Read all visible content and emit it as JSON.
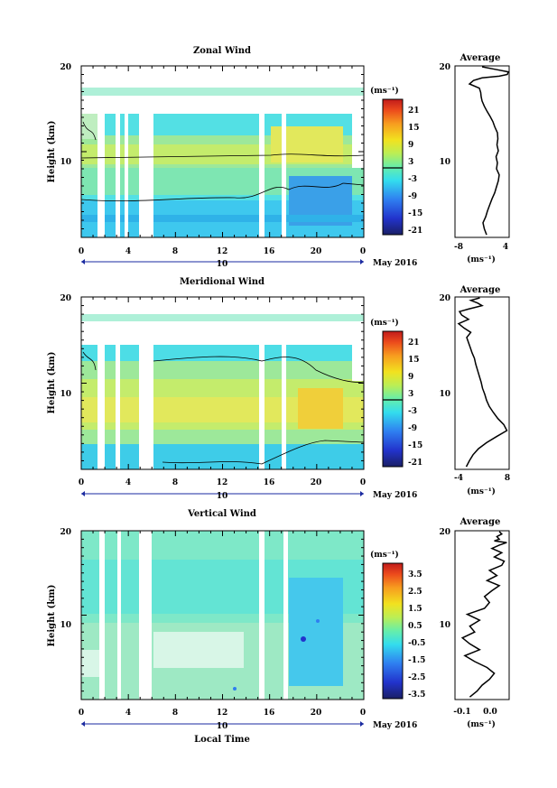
{
  "figure": {
    "xlabel": "Local Time"
  },
  "chart_data": [
    {
      "type": "heatmap",
      "title": "Zonal Wind",
      "ylabel": "Height (km)",
      "xticks": [
        "0",
        "4",
        "8",
        "12",
        "16",
        "20",
        "0"
      ],
      "yticks": [
        "10",
        "20"
      ],
      "ylim": [
        0,
        20
      ],
      "date_axis": {
        "day": "10",
        "month_label": "May 2016"
      },
      "colorbar": {
        "unit": "(ms⁻¹)",
        "ticks": [
          "21",
          "15",
          "9",
          "3",
          "-3",
          "-9",
          "-15",
          "-21"
        ],
        "range": [
          -24,
          24
        ],
        "zero_line": true
      },
      "profile": {
        "title": "Average",
        "xlabel": "(ms⁻¹)",
        "xticks": [
          "-8",
          "4"
        ],
        "xlim": [
          -8,
          4
        ],
        "yticks": [
          "10",
          "20"
        ],
        "x": [
          -1.0,
          -1.5,
          -1.8,
          -1.2,
          -0.8,
          -0.3,
          0.2,
          0.8,
          1.2,
          1.6,
          1.8,
          1.2,
          1.4,
          1.1,
          1.6,
          1.3,
          1.5,
          1.4,
          0.8,
          0.4,
          -0.2,
          -0.9,
          -1.5,
          -2.0,
          -2.2,
          -2.3,
          -2.6,
          -4.8,
          -3.9,
          -2.0,
          1.8,
          3.6,
          3.8,
          0.9,
          -2.0
        ],
        "y": [
          0.3,
          1.0,
          1.7,
          2.4,
          3.1,
          3.8,
          4.5,
          5.2,
          5.9,
          6.6,
          7.3,
          8.0,
          8.7,
          9.4,
          10.1,
          10.8,
          11.5,
          12.2,
          12.9,
          13.5,
          14.1,
          14.7,
          15.3,
          15.9,
          16.4,
          16.9,
          17.4,
          17.9,
          18.3,
          18.6,
          18.8,
          19.0,
          19.3,
          19.6,
          19.9
        ]
      }
    },
    {
      "type": "heatmap",
      "title": "Meridional Wind",
      "ylabel": "Height (km)",
      "xticks": [
        "0",
        "4",
        "8",
        "12",
        "16",
        "20",
        "0"
      ],
      "yticks": [
        "10",
        "20"
      ],
      "ylim": [
        0,
        20
      ],
      "date_axis": {
        "day": "10",
        "month_label": "May 2016"
      },
      "colorbar": {
        "unit": "(ms⁻¹)",
        "ticks": [
          "21",
          "15",
          "9",
          "3",
          "-3",
          "-9",
          "-15",
          "-21"
        ],
        "range": [
          -24,
          24
        ],
        "zero_line": true
      },
      "profile": {
        "title": "Average",
        "xlabel": "(ms⁻¹)",
        "xticks": [
          "-4",
          "8"
        ],
        "xlim": [
          -4,
          8
        ],
        "yticks": [
          "10",
          "20"
        ],
        "x": [
          -1.5,
          -0.8,
          0.0,
          1.2,
          3.0,
          5.2,
          7.5,
          6.8,
          5.5,
          4.5,
          3.6,
          3.0,
          2.6,
          2.1,
          1.8,
          1.4,
          1.0,
          0.6,
          0.3,
          -0.2,
          -0.6,
          -1.0,
          -1.4,
          -0.5,
          -2.0,
          -3.2,
          -1.0,
          -2.5,
          -3.0,
          -1.0,
          0.5,
          2.0,
          1.0,
          -0.5,
          1.5
        ],
        "y": [
          0.3,
          1.0,
          1.7,
          2.4,
          3.1,
          3.8,
          4.5,
          5.2,
          5.9,
          6.6,
          7.3,
          8.0,
          8.7,
          9.4,
          10.1,
          10.8,
          11.5,
          12.2,
          12.9,
          13.5,
          14.1,
          14.7,
          15.3,
          15.9,
          16.4,
          16.9,
          17.4,
          17.9,
          18.3,
          18.6,
          18.8,
          19.0,
          19.3,
          19.6,
          19.9
        ]
      }
    },
    {
      "type": "heatmap",
      "title": "Vertical Wind",
      "ylabel": "Height (km)",
      "xticks": [
        "0",
        "4",
        "8",
        "12",
        "16",
        "20",
        "0"
      ],
      "yticks": [
        "10",
        "20"
      ],
      "ylim": [
        0,
        20
      ],
      "date_axis": {
        "day": "10",
        "month_label": "May 2016"
      },
      "colorbar": {
        "unit": "(ms⁻¹)",
        "ticks": [
          "3.5",
          "2.5",
          "1.5",
          "0.5",
          "-0.5",
          "-1.5",
          "-2.5",
          "-3.5"
        ],
        "range": [
          -4,
          4
        ],
        "zero_line": false
      },
      "profile": {
        "title": "Average",
        "xlabel": "(ms⁻¹)",
        "xticks": [
          "-0.1",
          "0.0"
        ],
        "xlim": [
          -0.16,
          0.06
        ],
        "yticks": [
          "10",
          "20"
        ],
        "x": [
          -0.1,
          -0.07,
          -0.05,
          -0.02,
          0.0,
          -0.03,
          -0.08,
          -0.12,
          -0.06,
          -0.1,
          -0.13,
          -0.08,
          -0.1,
          -0.06,
          -0.11,
          -0.04,
          -0.02,
          -0.04,
          -0.01,
          0.02,
          -0.03,
          0.01,
          -0.02,
          0.03,
          0.04,
          0.0,
          0.03,
          -0.01,
          0.02,
          0.05,
          0.0,
          0.02,
          0.01,
          0.03,
          0.02
        ],
        "y": [
          0.3,
          1.0,
          1.7,
          2.4,
          3.1,
          3.8,
          4.5,
          5.2,
          5.9,
          6.6,
          7.3,
          8.0,
          8.7,
          9.4,
          10.1,
          10.8,
          11.5,
          12.2,
          12.9,
          13.5,
          14.1,
          14.7,
          15.3,
          15.9,
          16.4,
          16.9,
          17.4,
          17.9,
          18.3,
          18.6,
          18.8,
          19.0,
          19.3,
          19.6,
          19.9
        ]
      }
    }
  ]
}
